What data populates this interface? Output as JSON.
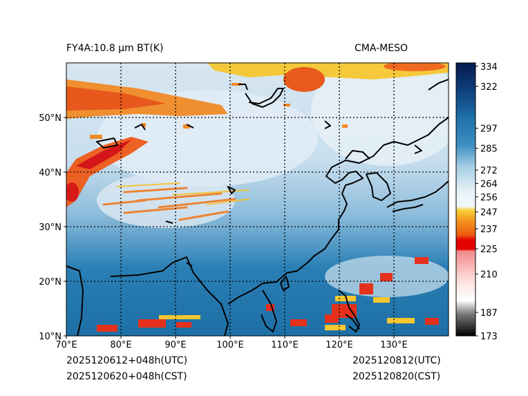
{
  "header": {
    "left_title": "FY4A:10.8 µm BT(K)",
    "right_title": "CMA-MESO"
  },
  "footer": {
    "init_utc": "2025120612+048h(UTC)",
    "init_cst": "2025120620+048h(CST)",
    "valid_utc": "2025120812(UTC)",
    "valid_cst": "2025120820(CST)"
  },
  "map": {
    "lon_ticks": [
      "70°E",
      "80°E",
      "90°E",
      "100°E",
      "110°E",
      "120°E",
      "130°E"
    ],
    "lat_ticks": [
      "10°N",
      "20°N",
      "30°N",
      "40°N",
      "50°N"
    ],
    "lon_range": [
      70,
      140
    ],
    "lat_range": [
      10,
      60
    ]
  },
  "colorbar": {
    "labels": [
      "334",
      "322",
      "297",
      "285",
      "272",
      "264",
      "256",
      "247",
      "237",
      "225",
      "210",
      "187",
      "173"
    ],
    "range": [
      173,
      336
    ]
  },
  "colors": {
    "cold_cloud": "#e6301c",
    "warm_sea": "#1f78b0",
    "cirrus": "#dce9f2",
    "yellow": "#f5c22a"
  }
}
